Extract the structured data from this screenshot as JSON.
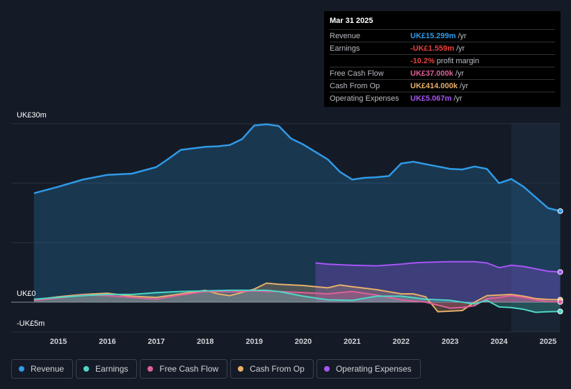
{
  "tooltip": {
    "date": "Mar 31 2025",
    "rows": [
      {
        "label": "Revenue",
        "value": "UK£15.299m",
        "unit": "/yr",
        "color": "#2f9be8"
      },
      {
        "label": "Earnings",
        "value": "-UK£1.559m",
        "unit": "/yr",
        "color": "#e8413e"
      },
      {
        "label": "",
        "value": "-10.2%",
        "unit": "profit margin",
        "color": "#e8413e"
      },
      {
        "label": "Free Cash Flow",
        "value": "UK£37.000k",
        "unit": "/yr",
        "color": "#e0609a"
      },
      {
        "label": "Cash From Op",
        "value": "UK£414.000k",
        "unit": "/yr",
        "color": "#e8b06a"
      },
      {
        "label": "Operating Expenses",
        "value": "UK£5.067m",
        "unit": "/yr",
        "color": "#a855f7"
      }
    ]
  },
  "chart_data": {
    "type": "area",
    "title": "",
    "y_axis_labels": [
      "UK£30m",
      "UK£0",
      "-UK£5m"
    ],
    "ylim": [
      -5,
      30
    ],
    "xlim": [
      2014.5,
      2025.25
    ],
    "forecast_start": 2024.25,
    "x_ticks": [
      "2015",
      "2016",
      "2017",
      "2018",
      "2019",
      "2020",
      "2021",
      "2022",
      "2023",
      "2024",
      "2025"
    ],
    "series": [
      {
        "name": "Revenue",
        "color": "#2f9be8",
        "fill": true,
        "points": [
          [
            2014.5,
            18.3
          ],
          [
            2015.0,
            19.4
          ],
          [
            2015.5,
            20.6
          ],
          [
            2016.0,
            21.4
          ],
          [
            2016.5,
            21.6
          ],
          [
            2017.0,
            22.7
          ],
          [
            2017.25,
            24.1
          ],
          [
            2017.5,
            25.6
          ],
          [
            2018.0,
            26.1
          ],
          [
            2018.25,
            26.2
          ],
          [
            2018.5,
            26.4
          ],
          [
            2018.75,
            27.4
          ],
          [
            2019.0,
            29.7
          ],
          [
            2019.25,
            29.9
          ],
          [
            2019.5,
            29.6
          ],
          [
            2019.75,
            27.5
          ],
          [
            2020.0,
            26.5
          ],
          [
            2020.5,
            24.0
          ],
          [
            2020.75,
            21.9
          ],
          [
            2021.0,
            20.6
          ],
          [
            2021.25,
            20.9
          ],
          [
            2021.5,
            21.0
          ],
          [
            2021.75,
            21.2
          ],
          [
            2022.0,
            23.3
          ],
          [
            2022.25,
            23.6
          ],
          [
            2022.5,
            23.2
          ],
          [
            2022.75,
            22.8
          ],
          [
            2023.0,
            22.4
          ],
          [
            2023.25,
            22.3
          ],
          [
            2023.5,
            22.8
          ],
          [
            2023.75,
            22.4
          ],
          [
            2024.0,
            20.0
          ],
          [
            2024.25,
            20.7
          ],
          [
            2024.5,
            19.4
          ],
          [
            2024.75,
            17.6
          ],
          [
            2025.0,
            15.8
          ],
          [
            2025.25,
            15.3
          ]
        ]
      },
      {
        "name": "Earnings",
        "color": "#4ed8c8",
        "fill": true,
        "points": [
          [
            2014.5,
            0.5
          ],
          [
            2015.0,
            0.8
          ],
          [
            2015.5,
            1.1
          ],
          [
            2016.0,
            1.3
          ],
          [
            2016.5,
            1.3
          ],
          [
            2017.0,
            1.6
          ],
          [
            2017.5,
            1.8
          ],
          [
            2018.0,
            1.9
          ],
          [
            2018.5,
            2.0
          ],
          [
            2019.0,
            2.0
          ],
          [
            2019.25,
            2.0
          ],
          [
            2019.5,
            1.8
          ],
          [
            2020.0,
            1.0
          ],
          [
            2020.5,
            0.4
          ],
          [
            2021.0,
            0.3
          ],
          [
            2021.5,
            1.0
          ],
          [
            2022.0,
            1.0
          ],
          [
            2022.5,
            0.5
          ],
          [
            2023.0,
            0.3
          ],
          [
            2023.5,
            -0.3
          ],
          [
            2023.75,
            0.3
          ],
          [
            2024.0,
            -0.8
          ],
          [
            2024.25,
            -0.9
          ],
          [
            2024.5,
            -1.2
          ],
          [
            2024.75,
            -1.7
          ],
          [
            2025.0,
            -1.6
          ],
          [
            2025.25,
            -1.56
          ]
        ]
      },
      {
        "name": "Free Cash Flow",
        "color": "#e0609a",
        "fill": true,
        "points": [
          [
            2014.5,
            0.3
          ],
          [
            2015.0,
            0.7
          ],
          [
            2015.5,
            1.2
          ],
          [
            2016.0,
            1.1
          ],
          [
            2016.5,
            0.8
          ],
          [
            2017.0,
            0.5
          ],
          [
            2017.5,
            1.2
          ],
          [
            2018.0,
            1.8
          ],
          [
            2018.5,
            1.7
          ],
          [
            2019.0,
            1.9
          ],
          [
            2019.25,
            1.8
          ],
          [
            2019.5,
            1.8
          ],
          [
            2020.0,
            1.6
          ],
          [
            2020.5,
            1.4
          ],
          [
            2021.0,
            1.8
          ],
          [
            2021.5,
            1.2
          ],
          [
            2022.0,
            0.4
          ],
          [
            2022.5,
            0.0
          ],
          [
            2023.0,
            -1.0
          ],
          [
            2023.25,
            -0.9
          ],
          [
            2023.5,
            -0.6
          ],
          [
            2023.75,
            0.6
          ],
          [
            2024.0,
            0.8
          ],
          [
            2024.25,
            1.1
          ],
          [
            2024.5,
            0.8
          ],
          [
            2024.75,
            0.4
          ],
          [
            2025.0,
            0.1
          ],
          [
            2025.25,
            0.04
          ]
        ]
      },
      {
        "name": "Cash From Op",
        "color": "#e8b06a",
        "fill": true,
        "points": [
          [
            2014.5,
            0.4
          ],
          [
            2015.0,
            0.9
          ],
          [
            2015.5,
            1.3
          ],
          [
            2016.0,
            1.5
          ],
          [
            2016.5,
            1.0
          ],
          [
            2017.0,
            0.8
          ],
          [
            2017.5,
            1.4
          ],
          [
            2018.0,
            2.0
          ],
          [
            2018.25,
            1.4
          ],
          [
            2018.5,
            1.1
          ],
          [
            2019.0,
            2.2
          ],
          [
            2019.25,
            3.2
          ],
          [
            2019.5,
            3.0
          ],
          [
            2020.0,
            2.8
          ],
          [
            2020.5,
            2.4
          ],
          [
            2020.75,
            2.9
          ],
          [
            2021.0,
            2.6
          ],
          [
            2021.5,
            2.1
          ],
          [
            2022.0,
            1.4
          ],
          [
            2022.25,
            1.4
          ],
          [
            2022.5,
            0.9
          ],
          [
            2022.75,
            -1.6
          ],
          [
            2023.0,
            -1.5
          ],
          [
            2023.25,
            -1.4
          ],
          [
            2023.5,
            0.0
          ],
          [
            2023.75,
            1.1
          ],
          [
            2024.0,
            1.2
          ],
          [
            2024.25,
            1.3
          ],
          [
            2024.5,
            1.0
          ],
          [
            2024.75,
            0.6
          ],
          [
            2025.0,
            0.45
          ],
          [
            2025.25,
            0.41
          ]
        ]
      },
      {
        "name": "Operating Expenses",
        "color": "#a855f7",
        "fill": true,
        "points": [
          [
            2020.25,
            6.6
          ],
          [
            2020.5,
            6.4
          ],
          [
            2021.0,
            6.2
          ],
          [
            2021.5,
            6.1
          ],
          [
            2022.0,
            6.4
          ],
          [
            2022.25,
            6.6
          ],
          [
            2022.5,
            6.7
          ],
          [
            2023.0,
            6.8
          ],
          [
            2023.5,
            6.8
          ],
          [
            2023.75,
            6.6
          ],
          [
            2024.0,
            5.8
          ],
          [
            2024.25,
            6.2
          ],
          [
            2024.5,
            6.0
          ],
          [
            2024.75,
            5.6
          ],
          [
            2025.0,
            5.2
          ],
          [
            2025.25,
            5.07
          ]
        ]
      }
    ]
  },
  "legend": [
    {
      "label": "Revenue",
      "color": "#2f9be8"
    },
    {
      "label": "Earnings",
      "color": "#4ed8c8"
    },
    {
      "label": "Free Cash Flow",
      "color": "#e0609a"
    },
    {
      "label": "Cash From Op",
      "color": "#e8b06a"
    },
    {
      "label": "Operating Expenses",
      "color": "#a855f7"
    }
  ]
}
